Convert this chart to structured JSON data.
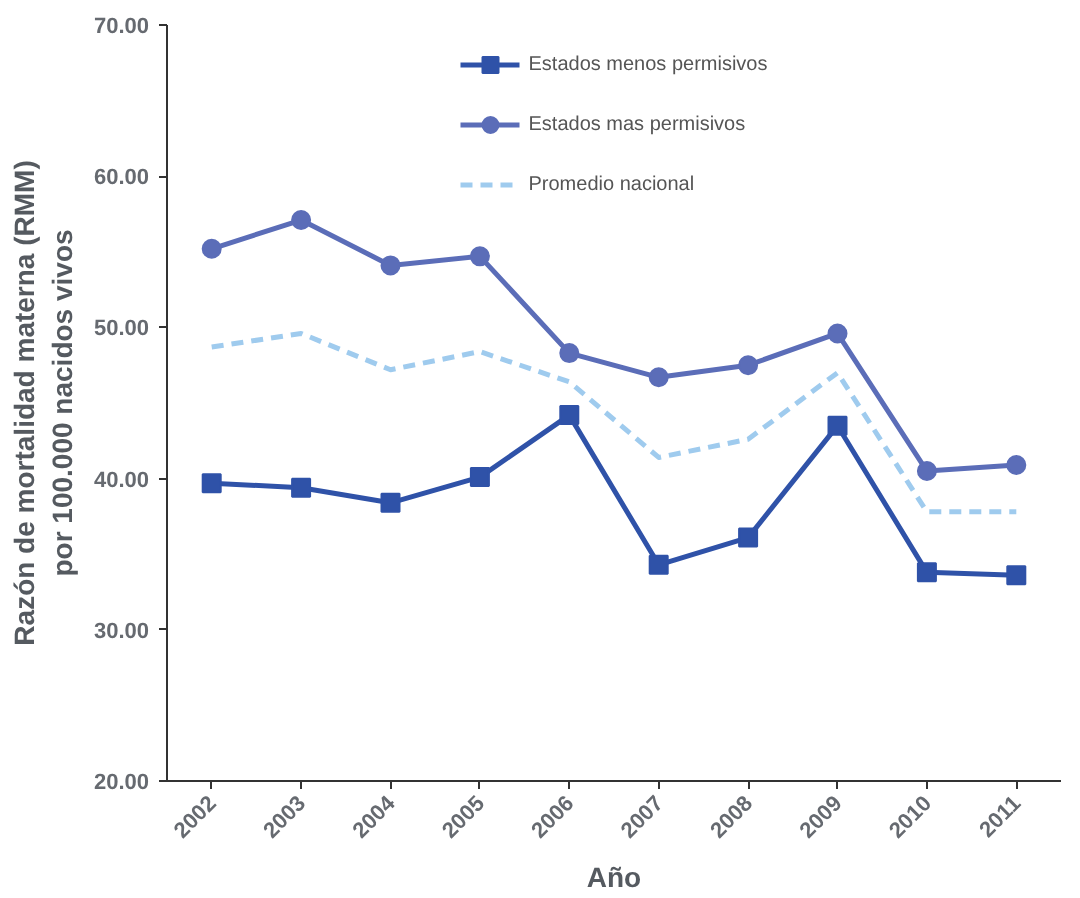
{
  "chart_data": {
    "type": "line",
    "xlabel": "Año",
    "ylabel": "Razón de mortalidad materna (RMM)\npor 100.000 nacidos vivos",
    "categories": [
      "2002",
      "2003",
      "2004",
      "2005",
      "2006",
      "2007",
      "2008",
      "2009",
      "2010",
      "2011"
    ],
    "series": [
      {
        "name": "Estados menos permisivos",
        "color": "#2f52a8",
        "marker": "square",
        "line_style": "solid",
        "values": [
          39.7,
          39.4,
          38.4,
          40.1,
          44.2,
          34.3,
          36.1,
          43.5,
          33.8,
          33.6
        ]
      },
      {
        "name": "Estados mas permisivos",
        "color": "#5b6db8",
        "marker": "circle",
        "line_style": "solid",
        "values": [
          55.2,
          57.1,
          54.1,
          54.7,
          48.3,
          46.7,
          47.5,
          49.6,
          40.5,
          40.9
        ]
      },
      {
        "name": "Promedio nacional",
        "color": "#9fcbee",
        "marker": "none",
        "line_style": "dashed",
        "values": [
          48.7,
          49.6,
          47.2,
          48.4,
          46.4,
          41.4,
          42.6,
          47.0,
          37.8,
          37.8
        ]
      }
    ],
    "ylim": [
      20,
      70
    ],
    "yticks": [
      {
        "value": 20,
        "label": "20.00"
      },
      {
        "value": 30,
        "label": "30.00"
      },
      {
        "value": 40,
        "label": "40.00"
      },
      {
        "value": 50,
        "label": "50.00"
      },
      {
        "value": 60,
        "label": "60.00"
      },
      {
        "value": 70,
        "label": "70.00"
      }
    ],
    "grid": false,
    "legend": "top"
  }
}
